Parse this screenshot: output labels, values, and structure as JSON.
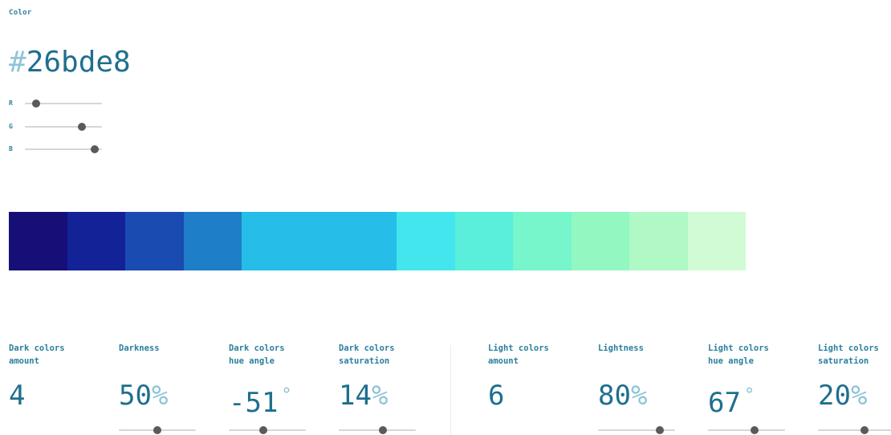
{
  "color_section": {
    "label": "Color",
    "hex_hash": "#",
    "hex_value": "26bde8",
    "channels": [
      {
        "label": "R",
        "value": 38,
        "max": 255
      },
      {
        "label": "G",
        "value": 189,
        "max": 255
      },
      {
        "label": "B",
        "value": 232,
        "max": 255
      }
    ]
  },
  "palette": [
    {
      "color": "#170f78",
      "base": false
    },
    {
      "color": "#132297",
      "base": false
    },
    {
      "color": "#1a4bb0",
      "base": false
    },
    {
      "color": "#1e7ec7",
      "base": false
    },
    {
      "color": "#26bde8",
      "base": true
    },
    {
      "color": "#44e6ee",
      "base": false
    },
    {
      "color": "#59efdb",
      "base": false
    },
    {
      "color": "#77f5cb",
      "base": false
    },
    {
      "color": "#93f7c2",
      "base": false
    },
    {
      "color": "#b0f9c5",
      "base": false
    },
    {
      "color": "#d0fbd5",
      "base": false
    }
  ],
  "params": [
    {
      "label": "Dark colors\namount",
      "value": "4",
      "unit": "",
      "level": null
    },
    {
      "label": "Darkness",
      "value": "50",
      "unit": "%",
      "level": 0.5
    },
    {
      "label": "Dark colors\nhue angle",
      "value": "-51",
      "unit": "°",
      "level": 0.45
    },
    {
      "label": "Dark colors\nsaturation",
      "value": "14",
      "unit": "%",
      "level": 0.57
    },
    {
      "label": "Light colors\namount",
      "value": "6",
      "unit": "",
      "level": null
    },
    {
      "label": "Lightness",
      "value": "80",
      "unit": "%",
      "level": 0.8
    },
    {
      "label": "Light colors\nhue angle",
      "value": "67",
      "unit": "°",
      "level": 0.6
    },
    {
      "label": "Light colors\nsaturation",
      "value": "20",
      "unit": "%",
      "level": 0.6
    }
  ]
}
